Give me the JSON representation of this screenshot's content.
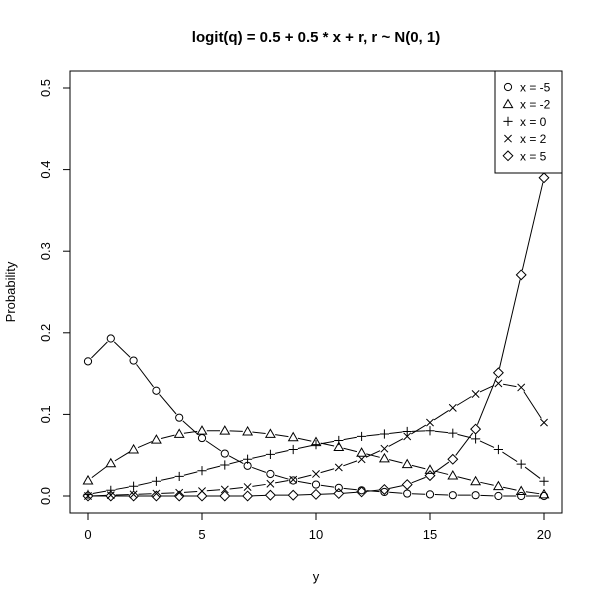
{
  "chart_data": {
    "type": "line",
    "title": "logit(q) = 0.5 + 0.5 * x + r, r ~ N(0, 1)",
    "xlabel": "y",
    "ylabel": "Probability",
    "xlim": [
      0,
      20
    ],
    "ylim": [
      0,
      0.5
    ],
    "x_ticks": [
      0,
      5,
      10,
      15,
      20
    ],
    "y_ticks": [
      0.0,
      0.1,
      0.2,
      0.3,
      0.4,
      0.5
    ],
    "x_tick_labels": [
      "0",
      "5",
      "10",
      "15",
      "20"
    ],
    "y_tick_labels": [
      "0.0",
      "0.1",
      "0.2",
      "0.3",
      "0.4",
      "0.5"
    ],
    "grid": false,
    "legend_position": "top-right",
    "x": [
      0,
      1,
      2,
      3,
      4,
      5,
      6,
      7,
      8,
      9,
      10,
      11,
      12,
      13,
      14,
      15,
      16,
      17,
      18,
      19,
      20
    ],
    "series": [
      {
        "name": "x = -5",
        "marker": "circle",
        "values": [
          0.165,
          0.193,
          0.166,
          0.129,
          0.096,
          0.071,
          0.052,
          0.037,
          0.027,
          0.019,
          0.014,
          0.01,
          0.007,
          0.005,
          0.003,
          0.002,
          0.001,
          0.001,
          0.0,
          0.0,
          0.0
        ]
      },
      {
        "name": "x = -2",
        "marker": "triangle",
        "values": [
          0.019,
          0.04,
          0.057,
          0.069,
          0.076,
          0.08,
          0.08,
          0.079,
          0.076,
          0.072,
          0.066,
          0.06,
          0.053,
          0.046,
          0.039,
          0.032,
          0.025,
          0.018,
          0.012,
          0.006,
          0.002
        ]
      },
      {
        "name": "x = 0",
        "marker": "plus",
        "values": [
          0.002,
          0.007,
          0.012,
          0.018,
          0.024,
          0.031,
          0.038,
          0.045,
          0.051,
          0.057,
          0.063,
          0.068,
          0.073,
          0.076,
          0.079,
          0.08,
          0.077,
          0.07,
          0.057,
          0.039,
          0.018
        ]
      },
      {
        "name": "x = 2",
        "marker": "cross",
        "values": [
          0.0,
          0.001,
          0.002,
          0.003,
          0.004,
          0.006,
          0.008,
          0.011,
          0.015,
          0.02,
          0.027,
          0.035,
          0.045,
          0.058,
          0.073,
          0.09,
          0.108,
          0.125,
          0.138,
          0.133,
          0.09
        ]
      },
      {
        "name": "x = 5",
        "marker": "diamond",
        "values": [
          0.0,
          0.0,
          0.0,
          0.0,
          0.0,
          0.0,
          0.0,
          0.0,
          0.001,
          0.001,
          0.002,
          0.003,
          0.005,
          0.008,
          0.014,
          0.025,
          0.045,
          0.082,
          0.151,
          0.271,
          0.39
        ]
      }
    ]
  }
}
